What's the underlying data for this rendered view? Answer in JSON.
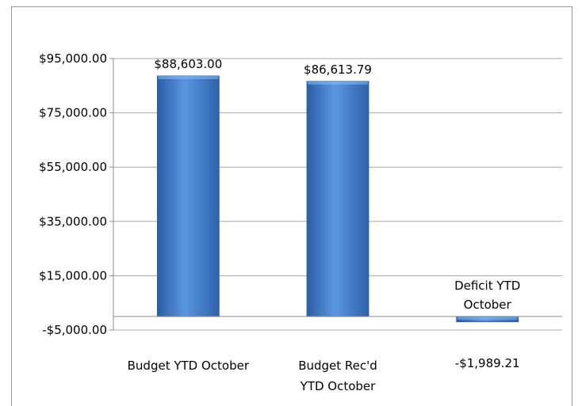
{
  "chart_data": {
    "type": "bar",
    "title": "",
    "xlabel": "",
    "ylabel": "",
    "categories": [
      "Budget YTD October",
      "Budget Rec'd YTD October",
      "Deficit YTD October"
    ],
    "category_label_lines": [
      [
        "Budget YTD October"
      ],
      [
        "Budget Rec'd",
        "YTD October"
      ],
      [
        "Deficit YTD",
        "October"
      ]
    ],
    "values": [
      88603.0,
      86613.79,
      -1989.21
    ],
    "data_labels": [
      "$88,603.00",
      "$86,613.79",
      "-$1,989.21"
    ],
    "y_ticks": [
      95000,
      75000,
      55000,
      35000,
      15000,
      -5000
    ],
    "y_tick_labels": [
      "$95,000.00",
      "$75,000.00",
      "$55,000.00",
      "$35,000.00",
      "$15,000.00",
      "-$5,000.00"
    ],
    "ylim": [
      -5000,
      95000
    ],
    "grid": true,
    "legend": "none",
    "colors": {
      "bar_dark": "#2a5ea6",
      "bar_mid": "#4a86d4",
      "bar_light": "#6fa4e6",
      "gridline": "#a8a8a8",
      "axis": "#8c8c8c"
    }
  }
}
